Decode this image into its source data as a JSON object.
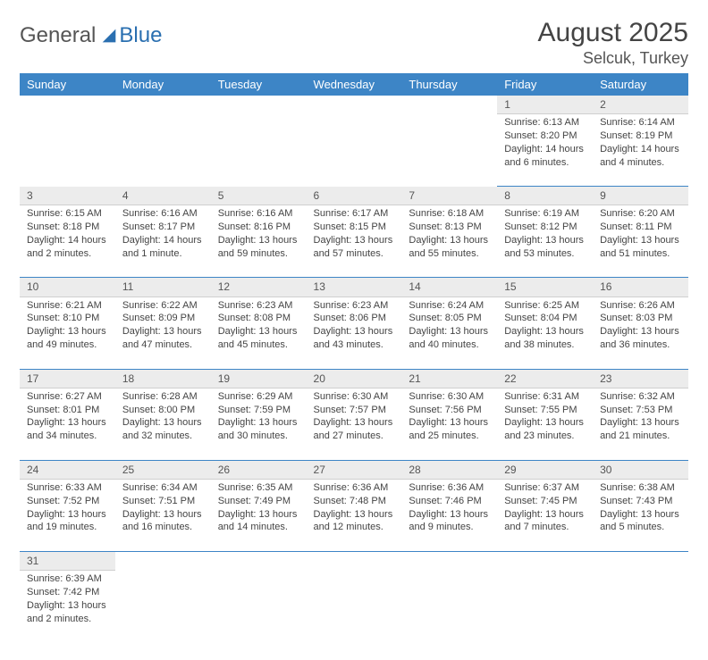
{
  "logo": {
    "text_general": "General",
    "text_blue": "Blue",
    "sail_color": "#2a6fb0"
  },
  "title": "August 2025",
  "location": "Selcuk, Turkey",
  "colors": {
    "header_bg": "#3d85c6",
    "daynum_bg": "#ececec",
    "row_divider": "#3d85c6"
  },
  "day_headers": [
    "Sunday",
    "Monday",
    "Tuesday",
    "Wednesday",
    "Thursday",
    "Friday",
    "Saturday"
  ],
  "weeks": [
    [
      null,
      null,
      null,
      null,
      null,
      {
        "n": "1",
        "sunrise": "6:13 AM",
        "sunset": "8:20 PM",
        "day": "14 hours and 6 minutes."
      },
      {
        "n": "2",
        "sunrise": "6:14 AM",
        "sunset": "8:19 PM",
        "day": "14 hours and 4 minutes."
      }
    ],
    [
      {
        "n": "3",
        "sunrise": "6:15 AM",
        "sunset": "8:18 PM",
        "day": "14 hours and 2 minutes."
      },
      {
        "n": "4",
        "sunrise": "6:16 AM",
        "sunset": "8:17 PM",
        "day": "14 hours and 1 minute."
      },
      {
        "n": "5",
        "sunrise": "6:16 AM",
        "sunset": "8:16 PM",
        "day": "13 hours and 59 minutes."
      },
      {
        "n": "6",
        "sunrise": "6:17 AM",
        "sunset": "8:15 PM",
        "day": "13 hours and 57 minutes."
      },
      {
        "n": "7",
        "sunrise": "6:18 AM",
        "sunset": "8:13 PM",
        "day": "13 hours and 55 minutes."
      },
      {
        "n": "8",
        "sunrise": "6:19 AM",
        "sunset": "8:12 PM",
        "day": "13 hours and 53 minutes."
      },
      {
        "n": "9",
        "sunrise": "6:20 AM",
        "sunset": "8:11 PM",
        "day": "13 hours and 51 minutes."
      }
    ],
    [
      {
        "n": "10",
        "sunrise": "6:21 AM",
        "sunset": "8:10 PM",
        "day": "13 hours and 49 minutes."
      },
      {
        "n": "11",
        "sunrise": "6:22 AM",
        "sunset": "8:09 PM",
        "day": "13 hours and 47 minutes."
      },
      {
        "n": "12",
        "sunrise": "6:23 AM",
        "sunset": "8:08 PM",
        "day": "13 hours and 45 minutes."
      },
      {
        "n": "13",
        "sunrise": "6:23 AM",
        "sunset": "8:06 PM",
        "day": "13 hours and 43 minutes."
      },
      {
        "n": "14",
        "sunrise": "6:24 AM",
        "sunset": "8:05 PM",
        "day": "13 hours and 40 minutes."
      },
      {
        "n": "15",
        "sunrise": "6:25 AM",
        "sunset": "8:04 PM",
        "day": "13 hours and 38 minutes."
      },
      {
        "n": "16",
        "sunrise": "6:26 AM",
        "sunset": "8:03 PM",
        "day": "13 hours and 36 minutes."
      }
    ],
    [
      {
        "n": "17",
        "sunrise": "6:27 AM",
        "sunset": "8:01 PM",
        "day": "13 hours and 34 minutes."
      },
      {
        "n": "18",
        "sunrise": "6:28 AM",
        "sunset": "8:00 PM",
        "day": "13 hours and 32 minutes."
      },
      {
        "n": "19",
        "sunrise": "6:29 AM",
        "sunset": "7:59 PM",
        "day": "13 hours and 30 minutes."
      },
      {
        "n": "20",
        "sunrise": "6:30 AM",
        "sunset": "7:57 PM",
        "day": "13 hours and 27 minutes."
      },
      {
        "n": "21",
        "sunrise": "6:30 AM",
        "sunset": "7:56 PM",
        "day": "13 hours and 25 minutes."
      },
      {
        "n": "22",
        "sunrise": "6:31 AM",
        "sunset": "7:55 PM",
        "day": "13 hours and 23 minutes."
      },
      {
        "n": "23",
        "sunrise": "6:32 AM",
        "sunset": "7:53 PM",
        "day": "13 hours and 21 minutes."
      }
    ],
    [
      {
        "n": "24",
        "sunrise": "6:33 AM",
        "sunset": "7:52 PM",
        "day": "13 hours and 19 minutes."
      },
      {
        "n": "25",
        "sunrise": "6:34 AM",
        "sunset": "7:51 PM",
        "day": "13 hours and 16 minutes."
      },
      {
        "n": "26",
        "sunrise": "6:35 AM",
        "sunset": "7:49 PM",
        "day": "13 hours and 14 minutes."
      },
      {
        "n": "27",
        "sunrise": "6:36 AM",
        "sunset": "7:48 PM",
        "day": "13 hours and 12 minutes."
      },
      {
        "n": "28",
        "sunrise": "6:36 AM",
        "sunset": "7:46 PM",
        "day": "13 hours and 9 minutes."
      },
      {
        "n": "29",
        "sunrise": "6:37 AM",
        "sunset": "7:45 PM",
        "day": "13 hours and 7 minutes."
      },
      {
        "n": "30",
        "sunrise": "6:38 AM",
        "sunset": "7:43 PM",
        "day": "13 hours and 5 minutes."
      }
    ],
    [
      {
        "n": "31",
        "sunrise": "6:39 AM",
        "sunset": "7:42 PM",
        "day": "13 hours and 2 minutes."
      },
      null,
      null,
      null,
      null,
      null,
      null
    ]
  ],
  "labels": {
    "sunrise": "Sunrise: ",
    "sunset": "Sunset: ",
    "daylight": "Daylight: "
  }
}
